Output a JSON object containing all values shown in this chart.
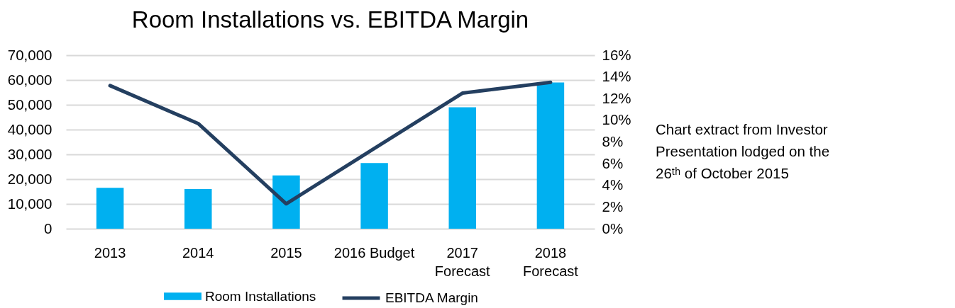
{
  "chart_data": {
    "type": "bar",
    "title": "Room Installations vs. EBITDA Margin",
    "categories": [
      "2013",
      "2014",
      "2015",
      "2016 Budget",
      "2017 Forecast",
      "2018 Forecast"
    ],
    "series": [
      {
        "name": "Room Installations",
        "color": "#00b0f0",
        "values": [
          16500,
          16000,
          21500,
          26500,
          49000,
          59000
        ]
      },
      {
        "name": "EBITDA Margin",
        "type": "line",
        "axis": "y2",
        "color": "#243f60",
        "line_style": "solid",
        "values": [
          13.2,
          9.7,
          2.3,
          7.4,
          12.5,
          13.5
        ]
      }
    ],
    "ylim": [
      0,
      70000
    ],
    "yticks": [
      0,
      {
        "value": 10000,
        "label": "10,000"
      },
      {
        "value": 20000,
        "label": "20,000"
      },
      {
        "value": 30000,
        "label": "30,000"
      },
      {
        "value": 40000,
        "label": "40,000"
      },
      {
        "value": 50000,
        "label": "50,000"
      },
      {
        "value": 60000,
        "label": "60,000"
      },
      {
        "value": 70000,
        "label": "70,000"
      }
    ],
    "y2lim": [
      0,
      16
    ],
    "y2ticks": [
      {
        "value": 0,
        "label": "0%"
      },
      {
        "value": 2,
        "label": "2%"
      },
      {
        "value": 4,
        "label": "4%"
      },
      {
        "value": 6,
        "label": "6%"
      },
      {
        "value": 8,
        "label": "8%"
      },
      {
        "value": 10,
        "label": "10%"
      },
      {
        "value": 12,
        "label": "12%"
      },
      {
        "value": 14,
        "label": "14%"
      },
      {
        "value": 16,
        "label": "16%"
      }
    ],
    "grid": "y",
    "legend": "bottom",
    "annotations": [
      "Chart extract from Investor Presentation lodged on the 26ᵗʰ of October 2015"
    ]
  }
}
